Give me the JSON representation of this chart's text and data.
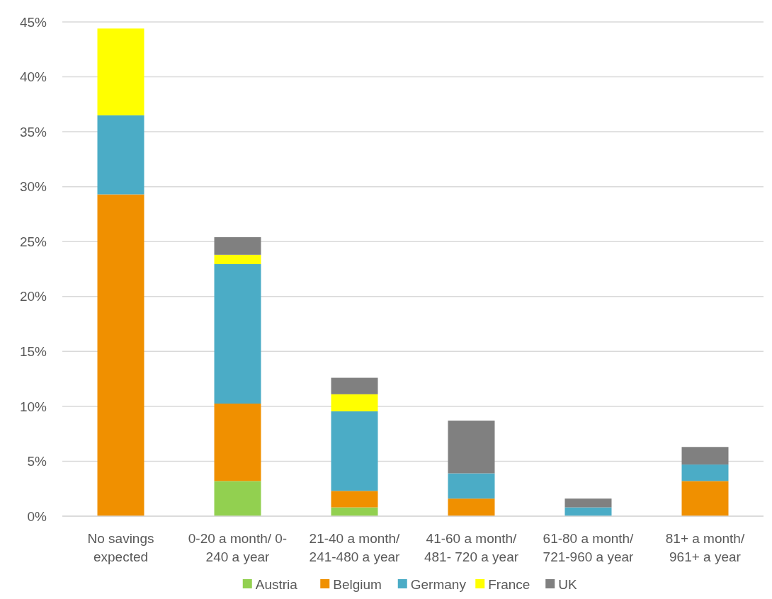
{
  "chart_data": {
    "type": "bar",
    "stacked": true,
    "categories": [
      "No savings expected",
      "0-20 a month/ 0-240 a year",
      "21-40 a month/ 241-480 a year",
      "41-60 a month/ 481- 720 a year",
      "61-80 a month/ 721-960 a year",
      "81+ a month/ 961+ a year"
    ],
    "series": [
      {
        "name": "Austria",
        "color": "#92d050",
        "values": [
          0,
          3.2,
          0.8,
          0,
          0,
          0
        ]
      },
      {
        "name": "Belgium",
        "color": "#f09000",
        "values": [
          29.3,
          7.05,
          1.5,
          1.6,
          0,
          3.2
        ]
      },
      {
        "name": "Germany",
        "color": "#4bacc6",
        "values": [
          7.2,
          12.7,
          7.25,
          2.3,
          0.8,
          1.5
        ]
      },
      {
        "name": "France",
        "color": "#ffff00",
        "values": [
          7.9,
          0.85,
          1.55,
          0,
          0,
          0
        ]
      },
      {
        "name": "UK",
        "color": "#808080",
        "values": [
          0,
          1.6,
          1.5,
          4.8,
          0.8,
          1.6
        ]
      }
    ],
    "ylim": [
      0,
      45
    ],
    "yticks": [
      {
        "value": 0,
        "label": "0%"
      },
      {
        "value": 5,
        "label": "5%"
      },
      {
        "value": 10,
        "label": "10%"
      },
      {
        "value": 15,
        "label": "15%"
      },
      {
        "value": 20,
        "label": "20%"
      },
      {
        "value": 25,
        "label": "25%"
      },
      {
        "value": 30,
        "label": "30%"
      },
      {
        "value": 35,
        "label": "35%"
      },
      {
        "value": 40,
        "label": "40%"
      },
      {
        "value": 45,
        "label": "45%"
      }
    ],
    "grid": "y",
    "legend": "bottom"
  }
}
